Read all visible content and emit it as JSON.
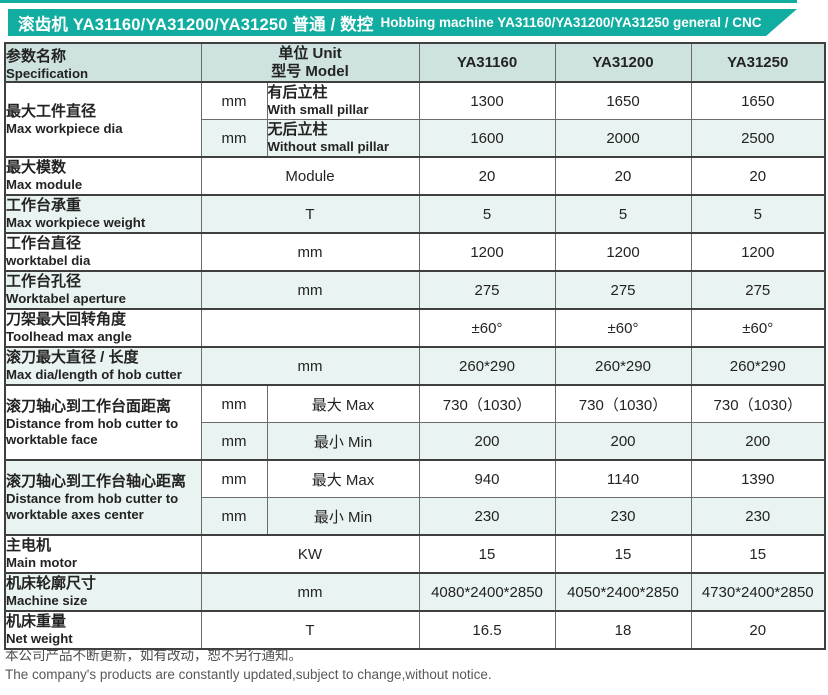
{
  "accent_color": "#10ada0",
  "banner": {
    "title_zh": "滚齿机 YA31160/YA31200/YA31250 普通 / 数控",
    "title_en": "Hobbing machine YA31160/YA31200/YA31250 general / CNC"
  },
  "table": {
    "header": {
      "spec_zh": "参数名称",
      "spec_en": "Specification",
      "unit_line1": "单位 Unit",
      "unit_line2": "型号 Model",
      "models": [
        "YA31160",
        "YA31200",
        "YA31250"
      ]
    },
    "groups": [
      {
        "label_zh": "最大工件直径",
        "label_en": "Max workpiece dia",
        "label_bg": "w",
        "subrows": [
          {
            "unit": "mm",
            "desc_lines": [
              "有后立柱",
              "With small pillar"
            ],
            "values": [
              "1300",
              "1650",
              "1650"
            ],
            "bg": "w"
          },
          {
            "unit": "mm",
            "desc_lines": [
              "无后立柱",
              "Without small pillar"
            ],
            "values": [
              "1600",
              "2000",
              "2500"
            ],
            "bg": "t"
          }
        ]
      },
      {
        "label_zh": "最大模数",
        "label_en": "Max module",
        "label_bg": "w",
        "subrows": [
          {
            "unit": "Module",
            "values": [
              "20",
              "20",
              "20"
            ],
            "bg": "w"
          }
        ]
      },
      {
        "label_zh": "工作台承重",
        "label_en": "Max workpiece weight",
        "label_bg": "t",
        "subrows": [
          {
            "unit": "T",
            "values": [
              "5",
              "5",
              "5"
            ],
            "bg": "t"
          }
        ]
      },
      {
        "label_zh": "工作台直径",
        "label_en": "worktabel dia",
        "label_bg": "w",
        "subrows": [
          {
            "unit": "mm",
            "values": [
              "1200",
              "1200",
              "1200"
            ],
            "bg": "w"
          }
        ]
      },
      {
        "label_zh": "工作台孔径",
        "label_en": "Worktabel aperture",
        "label_bg": "t",
        "subrows": [
          {
            "unit": "mm",
            "values": [
              "275",
              "275",
              "275"
            ],
            "bg": "t"
          }
        ]
      },
      {
        "label_zh": "刀架最大回转角度",
        "label_en": "Toolhead max angle",
        "label_bg": "w",
        "subrows": [
          {
            "unit": "",
            "values": [
              "±60°",
              "±60°",
              "±60°"
            ],
            "bg": "w"
          }
        ]
      },
      {
        "label_zh": "滚刀最大直径 / 长度",
        "label_en": "Max dia/length of hob cutter",
        "label_bg": "t",
        "subrows": [
          {
            "unit": "mm",
            "values": [
              "260*290",
              "260*290",
              "260*290"
            ],
            "bg": "t"
          }
        ]
      },
      {
        "label_zh": "滚刀轴心到工作台面距离",
        "label_en": "Distance from hob cutter to worktable face",
        "label_bg": "w",
        "subrows": [
          {
            "unit": "mm",
            "desc_lines": [
              "最大 Max"
            ],
            "values": [
              "730（1030）",
              "730（1030）",
              "730（1030）"
            ],
            "bg": "w"
          },
          {
            "unit": "mm",
            "desc_lines": [
              "最小 Min"
            ],
            "values": [
              "200",
              "200",
              "200"
            ],
            "bg": "t"
          }
        ]
      },
      {
        "label_zh": "滚刀轴心到工作台轴心距离",
        "label_en": "Distance from hob cutter to worktable axes center",
        "label_bg": "t",
        "subrows": [
          {
            "unit": "mm",
            "desc_lines": [
              "最大 Max"
            ],
            "values": [
              "940",
              "1140",
              "1390"
            ],
            "bg": "w"
          },
          {
            "unit": "mm",
            "desc_lines": [
              "最小 Min"
            ],
            "values": [
              "230",
              "230",
              "230"
            ],
            "bg": "t"
          }
        ]
      },
      {
        "label_zh": "主电机",
        "label_en": "Main motor",
        "label_bg": "w",
        "subrows": [
          {
            "unit": "KW",
            "values": [
              "15",
              "15",
              "15"
            ],
            "bg": "w"
          }
        ]
      },
      {
        "label_zh": "机床轮廓尺寸",
        "label_en": "Machine size",
        "label_bg": "t",
        "subrows": [
          {
            "unit": "mm",
            "values": [
              "4080*2400*2850",
              "4050*2400*2850",
              "4730*2400*2850"
            ],
            "bg": "t"
          }
        ]
      },
      {
        "label_zh": "机床重量",
        "label_en": "Net weight",
        "label_bg": "w",
        "subrows": [
          {
            "unit": "T",
            "values": [
              "16.5",
              "18",
              "20"
            ],
            "bg": "w"
          }
        ]
      }
    ]
  },
  "footer": {
    "line_zh": "本公司产品不断更新，如有改动，恕不另行通知。",
    "line_en": "The company's products are constantly updated,subject to change,without notice."
  }
}
